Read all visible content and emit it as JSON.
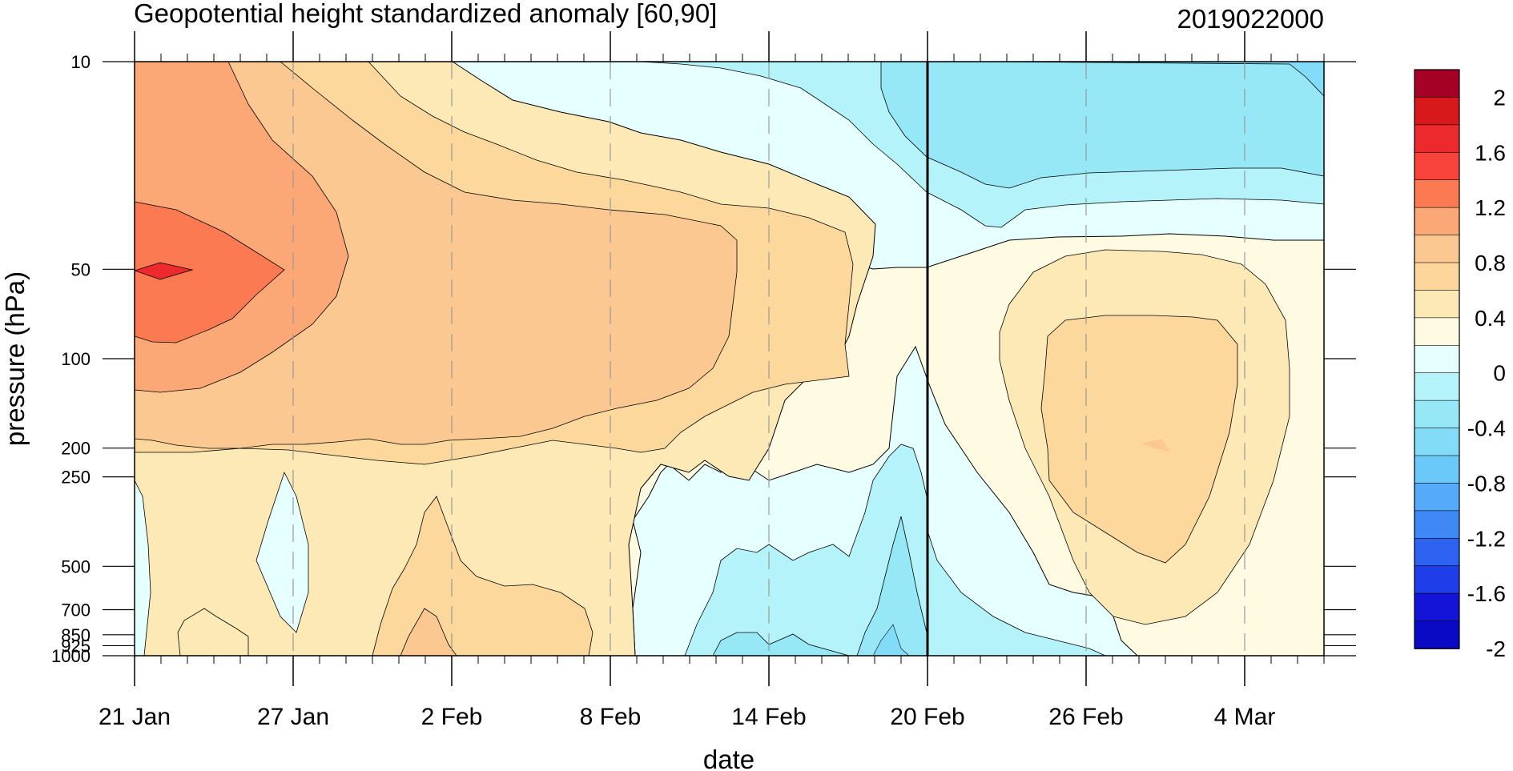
{
  "chart_data": {
    "type": "heatmap",
    "subtype": "filled-contour (time-pressure cross section)",
    "title": "Geopotential height standardized anomaly [60,90]",
    "date_label": "2019022000",
    "xlabel": "date",
    "ylabel": "pressure (hPa)",
    "x_ticks": [
      "21 Jan",
      "27 Jan",
      "2 Feb",
      "8 Feb",
      "14 Feb",
      "20 Feb",
      "26 Feb",
      "4 Mar"
    ],
    "x_range": [
      "2019-01-21",
      "2019-03-07"
    ],
    "y_ticks": [
      {
        "value": 10,
        "label": "10"
      },
      {
        "value": 50,
        "label": "50"
      },
      {
        "value": 100,
        "label": "100"
      },
      {
        "value": 200,
        "label": "200"
      },
      {
        "value": 250,
        "label": "250"
      },
      {
        "value": 500,
        "label": "500"
      },
      {
        "value": 700,
        "label": "700"
      },
      {
        "value": 850,
        "label": "850"
      },
      {
        "value": 925,
        "label": "925"
      },
      {
        "value": 1000,
        "label": "1000"
      }
    ],
    "y_scale": "log",
    "y_range": [
      1000,
      10
    ],
    "vertical_marker_date": "20 Feb",
    "colorbar": {
      "levels": [
        -2,
        -1.8,
        -1.6,
        -1.4,
        -1.2,
        -1,
        -0.8,
        -0.6,
        -0.4,
        -0.2,
        0,
        0.2,
        0.4,
        0.6,
        0.8,
        1,
        1.2,
        1.4,
        1.6,
        1.8,
        2
      ],
      "labels": [
        "2",
        "1.6",
        "1.2",
        "0.8",
        "0.4",
        "0",
        "-0.4",
        "-0.8",
        "-1.2",
        "-1.6",
        "-2"
      ],
      "colors_top_to_bottom": [
        "#a50026",
        "#d7191c",
        "#ec2a2e",
        "#f8433c",
        "#fb7a52",
        "#fca876",
        "#fcc892",
        "#fdd69c",
        "#fde9b5",
        "#fffbe2",
        "#e6ffff",
        "#b5f3fb",
        "#96e8f6",
        "#82dbf7",
        "#6bc9fa",
        "#55aaf9",
        "#3e89f5",
        "#2e62f1",
        "#1f3de8",
        "#1414d8",
        "#0a0ac4"
      ]
    },
    "anomaly_regions": [
      {
        "label": "peak",
        "date": "22 Jan",
        "pressure": 50,
        "level": 1.6
      },
      {
        "label": "max",
        "date": "29 Feb-area",
        "pressure": 200,
        "level": 0.8
      },
      {
        "label": "min",
        "date": "19 Feb",
        "pressure": 1000,
        "level": -0.8
      }
    ]
  }
}
